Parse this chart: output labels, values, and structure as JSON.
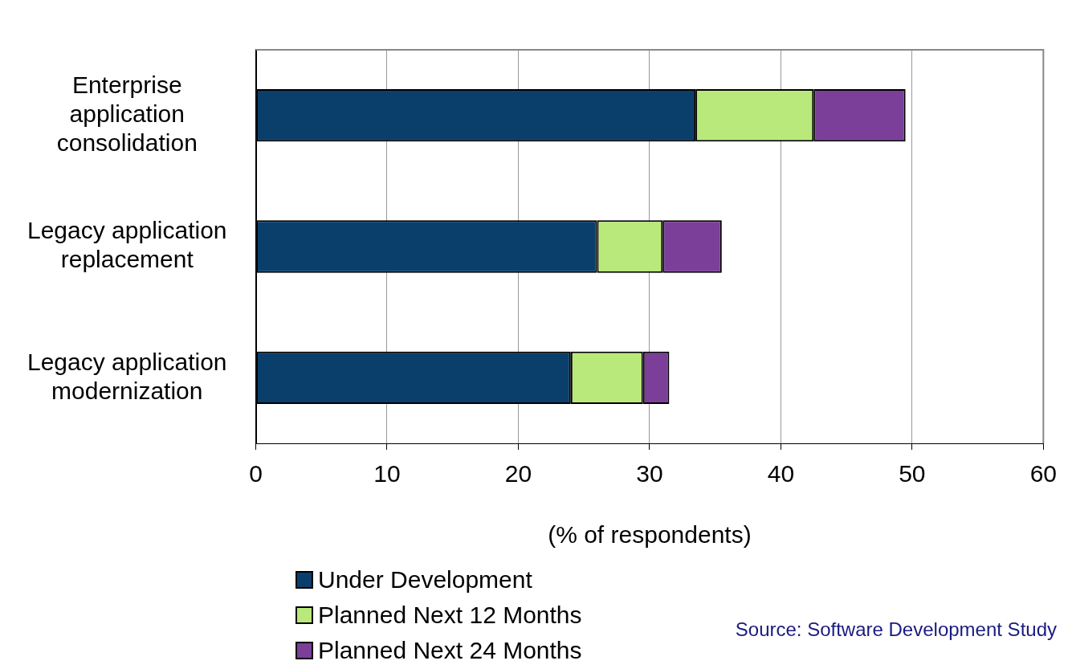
{
  "chart_data": {
    "type": "bar",
    "orientation": "horizontal",
    "stacked": true,
    "categories": [
      "Enterprise application consolidation",
      "Legacy application replacement",
      "Legacy application modernization"
    ],
    "series": [
      {
        "name": "Under Development",
        "color": "#0b3f6b",
        "values": [
          33.5,
          26,
          24
        ]
      },
      {
        "name": "Planned Next 12 Months",
        "color": "#b9e97a",
        "values": [
          9,
          5,
          5.5
        ]
      },
      {
        "name": "Planned Next 24 Months",
        "color": "#7b3f99",
        "values": [
          7,
          4.5,
          2
        ]
      }
    ],
    "xlim": [
      0,
      60
    ],
    "xticks": [
      0,
      10,
      20,
      30,
      40,
      50,
      60
    ],
    "xlabel": "(% of respondents)",
    "grid": "x",
    "legend": "bottom left",
    "annotations": [
      "Source: Software Development Study"
    ]
  }
}
